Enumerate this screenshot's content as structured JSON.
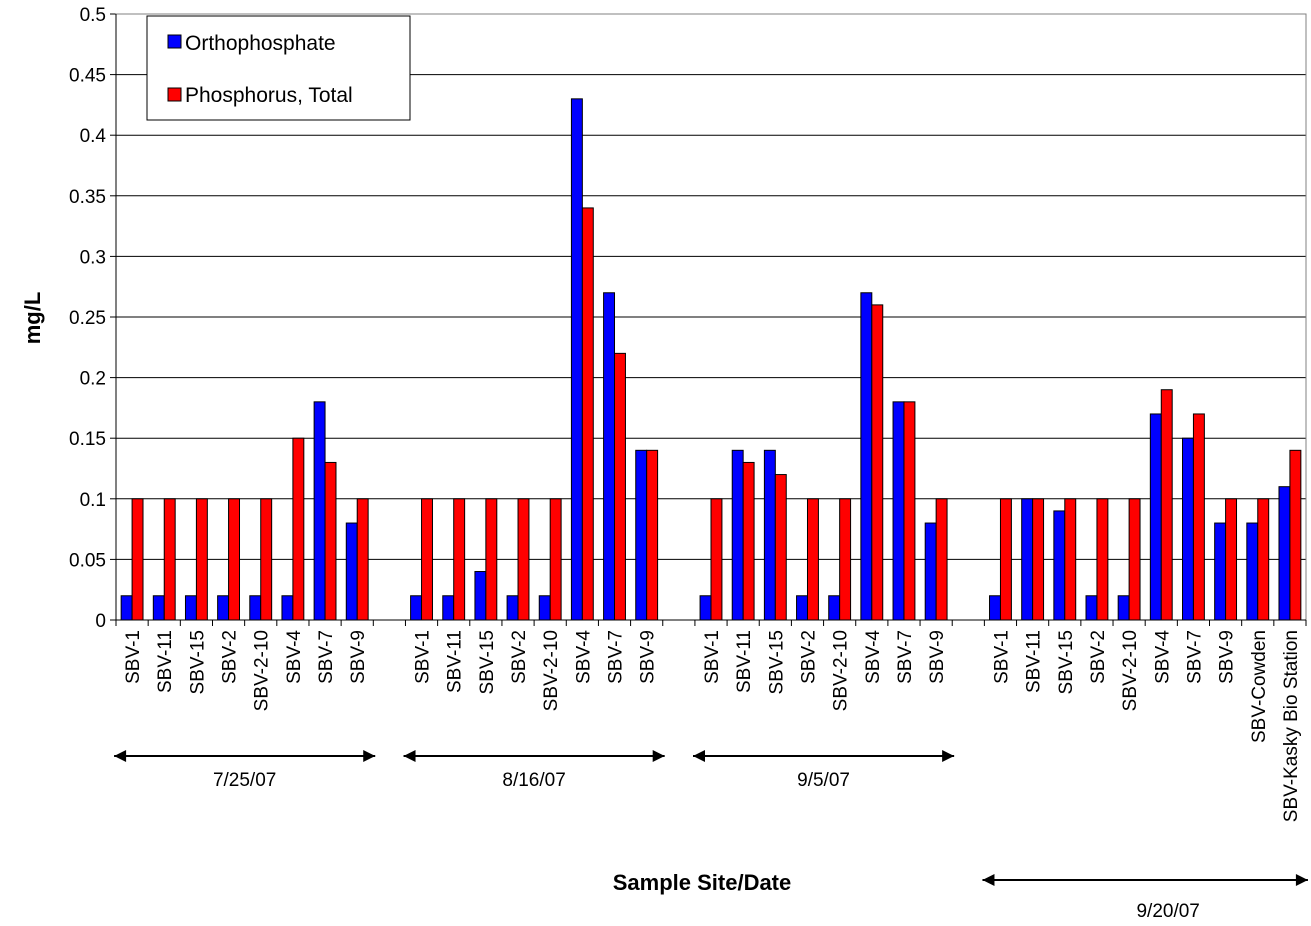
{
  "chart_data": {
    "type": "bar",
    "ylabel": "mg/L",
    "xlabel": "Sample Site/Date",
    "ylim": [
      0,
      0.5
    ],
    "ytick_step": 0.05,
    "grid": "horizontal",
    "legend_position": "top-left",
    "series": [
      {
        "name": "Orthophosphate",
        "color": "#0000ff"
      },
      {
        "name": "Phosphorus, Total",
        "color": "#ff0000"
      }
    ],
    "groups": [
      {
        "label": "7/25/07",
        "sites": [
          "SBV-1",
          "SBV-11",
          "SBV-15",
          "SBV-2",
          "SBV-2-10",
          "SBV-4",
          "SBV-7",
          "SBV-9"
        ],
        "orthophosphate": [
          0.02,
          0.02,
          0.02,
          0.02,
          0.02,
          0.02,
          0.18,
          0.08
        ],
        "phosphorus_total": [
          0.1,
          0.1,
          0.1,
          0.1,
          0.1,
          0.15,
          0.13,
          0.1
        ]
      },
      {
        "label": "8/16/07",
        "sites": [
          "SBV-1",
          "SBV-11",
          "SBV-15",
          "SBV-2",
          "SBV-2-10",
          "SBV-4",
          "SBV-7",
          "SBV-9"
        ],
        "orthophosphate": [
          0.02,
          0.02,
          0.04,
          0.02,
          0.02,
          0.43,
          0.27,
          0.14
        ],
        "phosphorus_total": [
          0.1,
          0.1,
          0.1,
          0.1,
          0.1,
          0.34,
          0.22,
          0.14
        ]
      },
      {
        "label": "9/5/07",
        "sites": [
          "SBV-1",
          "SBV-11",
          "SBV-15",
          "SBV-2",
          "SBV-2-10",
          "SBV-4",
          "SBV-7",
          "SBV-9"
        ],
        "orthophosphate": [
          0.02,
          0.14,
          0.14,
          0.02,
          0.02,
          0.27,
          0.18,
          0.08
        ],
        "phosphorus_total": [
          0.1,
          0.13,
          0.12,
          0.1,
          0.1,
          0.26,
          0.18,
          0.1
        ]
      },
      {
        "label": "9/20/07",
        "sites": [
          "SBV-1",
          "SBV-11",
          "SBV-15",
          "SBV-2",
          "SBV-2-10",
          "SBV-4",
          "SBV-7",
          "SBV-9",
          "SBV-Cowden",
          "SBV-Kasky Bio Station"
        ],
        "orthophosphate": [
          0.02,
          0.1,
          0.09,
          0.02,
          0.02,
          0.17,
          0.15,
          0.08,
          0.08,
          0.11
        ],
        "phosphorus_total": [
          0.1,
          0.1,
          0.1,
          0.1,
          0.1,
          0.19,
          0.17,
          0.1,
          0.1,
          0.14
        ]
      }
    ]
  }
}
